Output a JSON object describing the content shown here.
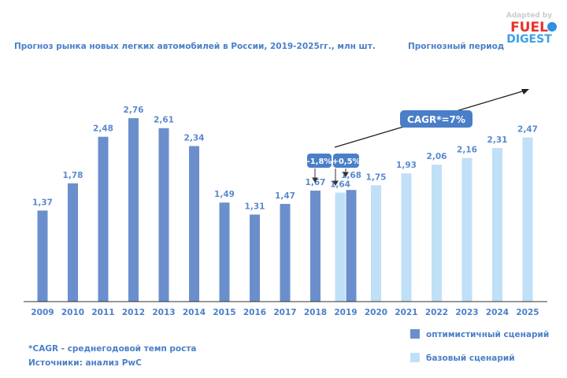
{
  "chart_data": {
    "type": "bar",
    "title": "Прогноз рынка новых легких автомобилей в России, 2019-2025гг., млн шт.",
    "forecast_label": "Прогнозный период",
    "categories": [
      "2009",
      "2010",
      "2011",
      "2012",
      "2013",
      "2014",
      "2015",
      "2016",
      "2017",
      "2018",
      "2019",
      "2020",
      "2021",
      "2022",
      "2023",
      "2024",
      "2025"
    ],
    "series": [
      {
        "name": "оптимистичный сценарий",
        "color": "#6b8fcc",
        "values": [
          1.37,
          1.78,
          2.48,
          2.76,
          2.61,
          2.34,
          1.49,
          1.31,
          1.47,
          1.67,
          1.68,
          null,
          null,
          null,
          null,
          null,
          null
        ],
        "labels": [
          "1,37",
          "1,78",
          "2,48",
          "2,76",
          "2,61",
          "2,34",
          "1,49",
          "1,31",
          "1,47",
          "1,67",
          "1,68",
          "",
          "",
          "",
          "",
          "",
          ""
        ]
      },
      {
        "name": "базовый сценарий",
        "color": "#bfe0f7",
        "values": [
          null,
          null,
          null,
          null,
          null,
          null,
          null,
          null,
          null,
          null,
          1.64,
          1.75,
          1.93,
          2.06,
          2.16,
          2.31,
          2.47
        ],
        "labels": [
          "",
          "",
          "",
          "",
          "",
          "",
          "",
          "",
          "",
          "",
          "1,64",
          "1,75",
          "1,93",
          "2,06",
          "2,16",
          "2,31",
          "2,47"
        ]
      }
    ],
    "annotations": {
      "change1": "-1,8%",
      "change2": "+0,5%",
      "cagr": "CAGR*=7%"
    },
    "ylim": [
      0,
      2.9
    ],
    "grid": false,
    "legend_placement": "bottom-right"
  },
  "footnote": "*CAGR - среднегодовой темп роста",
  "source": "Источники: анализ PwC",
  "logo": {
    "line1": "Adapted by",
    "line2": "FUELS",
    "line3": "DIGEST"
  }
}
